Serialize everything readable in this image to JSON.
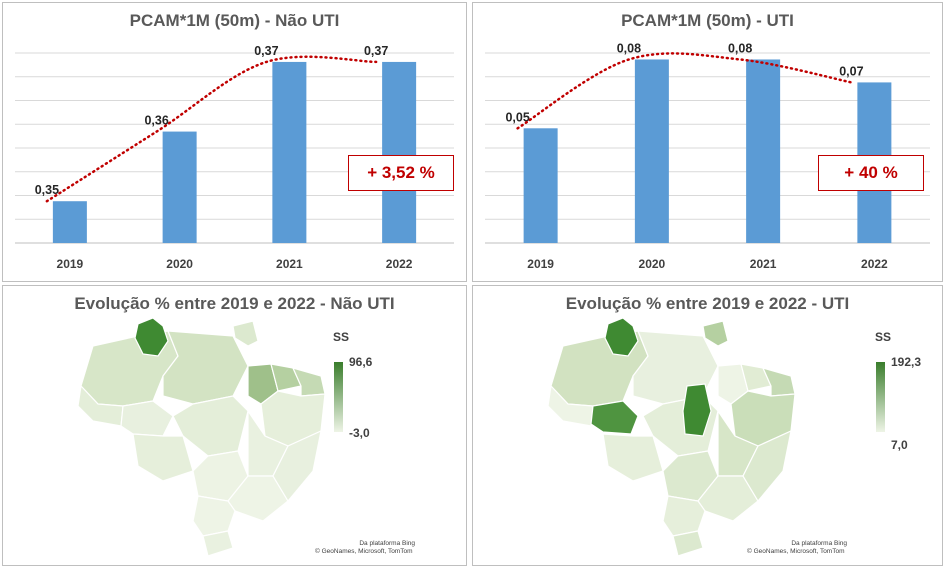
{
  "panels": {
    "top_left": {
      "title": "PCAM*1M (50m) - Não UTI",
      "badge": "+ 3,52 %"
    },
    "top_right": {
      "title": "PCAM*1M (50m) - UTI",
      "badge": "+ 40 %"
    },
    "bottom_left": {
      "title": "Evolução % entre 2019 e 2022 - Não UTI",
      "legend_title": "SS",
      "legend_max": "96,6",
      "legend_min": "-3,0",
      "attribution_1": "Da plataforma Bing",
      "attribution_2": "© GeoNames, Microsoft, TomTom"
    },
    "bottom_right": {
      "title": "Evolução % entre 2019 e 2022 - UTI",
      "legend_title": "SS",
      "legend_max": "192,3",
      "legend_min": "7,0",
      "attribution_1": "Da plataforma Bing",
      "attribution_2": "© GeoNames, Microsoft, TomTom"
    }
  },
  "colors": {
    "bar": "#5b9bd5",
    "trend": "#c00000",
    "grid": "#d9d9d9",
    "map_high": "#3a7d2c",
    "map_low": "#eef4e6"
  },
  "chart_data": [
    {
      "type": "bar",
      "title": "PCAM*1M (50m) - Não UTI",
      "categories": [
        "2019",
        "2020",
        "2021",
        "2022"
      ],
      "values": [
        0.35,
        0.36,
        0.37,
        0.37
      ],
      "labels": [
        "0,35",
        "0,36",
        "0,37",
        "0,37"
      ],
      "trendline": "polynomial, dotted",
      "grid": true
    },
    {
      "type": "bar",
      "title": "PCAM*1M (50m) - UTI",
      "categories": [
        "2019",
        "2020",
        "2021",
        "2022"
      ],
      "values": [
        0.05,
        0.08,
        0.08,
        0.07
      ],
      "labels": [
        "0,05",
        "0,08",
        "0,08",
        "0,07"
      ],
      "trendline": "polynomial, dotted",
      "grid": true
    }
  ]
}
